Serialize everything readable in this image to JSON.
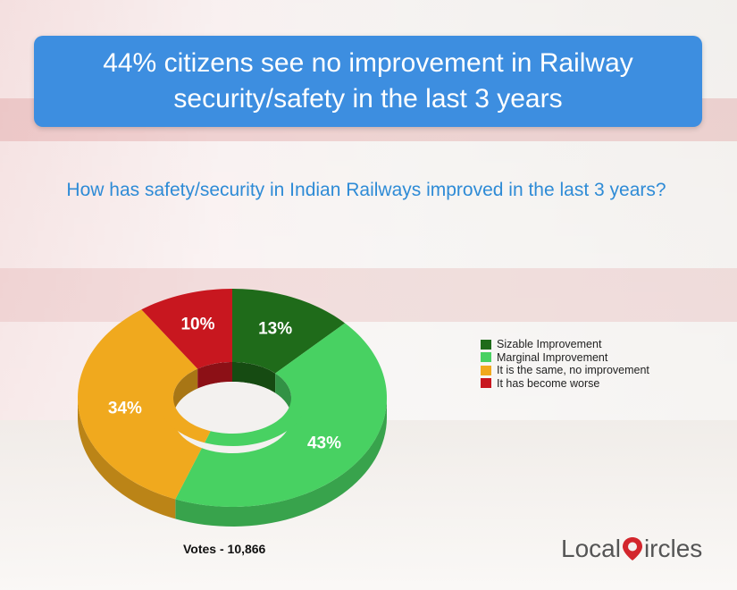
{
  "title": "44% citizens see no improvement in Railway security/safety in the last 3 years",
  "question": "How has safety/security in Indian Railways improved in the last 3 years?",
  "votes_label": "Votes - 10,866",
  "logo": {
    "part1": "Local",
    "part2": "ircles"
  },
  "colors": {
    "title_bg": "#3d8ee0",
    "question": "#2e8bd6",
    "sizable": "#1f6b1a",
    "marginal": "#48d162",
    "same": "#f0a91e",
    "worse": "#c8171f",
    "logo_red": "#d3262d"
  },
  "chart_data": {
    "type": "pie",
    "style": "donut-3d",
    "legend_position": "right",
    "slices": [
      {
        "label": "Sizable Improvement",
        "value": 13,
        "display": "13%",
        "color": "#1f6b1a"
      },
      {
        "label": "Marginal Improvement",
        "value": 43,
        "display": "43%",
        "color": "#48d162"
      },
      {
        "label": "It is the same, no improvement",
        "value": 34,
        "display": "34%",
        "color": "#f0a91e"
      },
      {
        "label": "It has become worse",
        "value": 10,
        "display": "10%",
        "color": "#c8171f"
      }
    ]
  }
}
